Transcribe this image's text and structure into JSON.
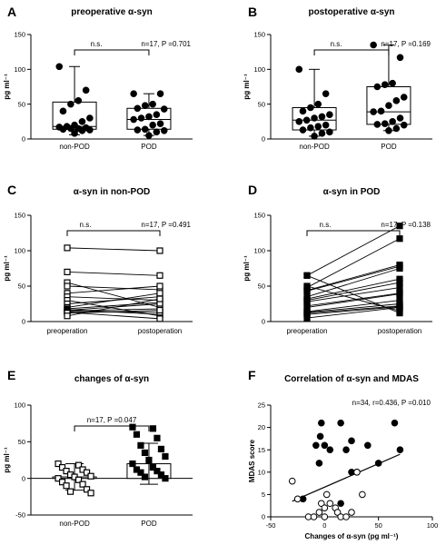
{
  "chart_data": [
    {
      "id": "A",
      "type": "box",
      "title": "preoperative α-syn",
      "ylabel": "pg ml⁻¹",
      "ylim": [
        0,
        150
      ],
      "yticks": [
        0,
        50,
        100,
        150
      ],
      "categories": [
        "non-POD",
        "POD"
      ],
      "annotation_ns": "n.s.",
      "annotation_stats": "n=17, P =0.701",
      "boxes": [
        {
          "name": "non-POD",
          "min": 6,
          "q1": 14,
          "median": 18,
          "q3": 53,
          "max": 104,
          "points": [
            104,
            70,
            55,
            50,
            40,
            30,
            25,
            20,
            18,
            17,
            16,
            15,
            15,
            14,
            13,
            12,
            8
          ]
        },
        {
          "name": "POD",
          "min": 5,
          "q1": 14,
          "median": 28,
          "q3": 44,
          "max": 65,
          "points": [
            65,
            65,
            50,
            48,
            44,
            43,
            35,
            32,
            30,
            28,
            22,
            20,
            14,
            13,
            12,
            10,
            5
          ]
        }
      ]
    },
    {
      "id": "B",
      "type": "box",
      "title": "postoperative α-syn",
      "ylabel": "pg ml⁻¹",
      "ylim": [
        0,
        150
      ],
      "yticks": [
        0,
        50,
        100,
        150
      ],
      "categories": [
        "non-POD",
        "POD"
      ],
      "annotation_ns": "n.s.",
      "annotation_stats": "n=17, P =0.169",
      "boxes": [
        {
          "name": "non-POD",
          "min": 4,
          "q1": 13,
          "median": 27,
          "q3": 45,
          "max": 100,
          "points": [
            100,
            65,
            50,
            45,
            40,
            35,
            32,
            30,
            27,
            25,
            20,
            18,
            16,
            13,
            10,
            8,
            4
          ]
        },
        {
          "name": "POD",
          "min": 12,
          "q1": 21,
          "median": 39,
          "q3": 75,
          "max": 135,
          "points": [
            135,
            117,
            80,
            78,
            75,
            60,
            55,
            48,
            40,
            39,
            30,
            25,
            22,
            21,
            20,
            15,
            12
          ]
        }
      ]
    },
    {
      "id": "C",
      "type": "paired-line",
      "title": "α-syn in non-POD",
      "ylabel": "pg ml⁻¹",
      "ylim": [
        0,
        150
      ],
      "yticks": [
        0,
        50,
        100,
        150
      ],
      "categories": [
        "preoperation",
        "postoperation"
      ],
      "marker": "square-open",
      "annotation_ns": "n.s.",
      "annotation_stats": "n=17, P =0.491",
      "pairs": [
        [
          104,
          100
        ],
        [
          70,
          65
        ],
        [
          55,
          20
        ],
        [
          50,
          45
        ],
        [
          40,
          50
        ],
        [
          35,
          30
        ],
        [
          30,
          8
        ],
        [
          25,
          35
        ],
        [
          20,
          40
        ],
        [
          18,
          27
        ],
        [
          17,
          10
        ],
        [
          16,
          25
        ],
        [
          15,
          18
        ],
        [
          14,
          13
        ],
        [
          13,
          4
        ],
        [
          12,
          16
        ],
        [
          8,
          32
        ]
      ]
    },
    {
      "id": "D",
      "type": "paired-line",
      "title": "α-syn in POD",
      "ylabel": "pg ml⁻¹",
      "ylim": [
        0,
        150
      ],
      "yticks": [
        0,
        50,
        100,
        150
      ],
      "categories": [
        "preoperation",
        "postoperation"
      ],
      "marker": "square-filled",
      "annotation_ns": "n.s.",
      "annotation_stats": "n=17, P =0.138",
      "pairs": [
        [
          65,
          135
        ],
        [
          48,
          117
        ],
        [
          44,
          80
        ],
        [
          43,
          78
        ],
        [
          35,
          75
        ],
        [
          32,
          60
        ],
        [
          30,
          55
        ],
        [
          28,
          48
        ],
        [
          22,
          40
        ],
        [
          20,
          39
        ],
        [
          14,
          30
        ],
        [
          13,
          25
        ],
        [
          12,
          22
        ],
        [
          10,
          21
        ],
        [
          5,
          20
        ],
        [
          50,
          15
        ],
        [
          65,
          12
        ]
      ]
    },
    {
      "id": "E",
      "type": "bar",
      "title": "changes of α-syn",
      "ylabel": "pg ml⁻¹",
      "ylim": [
        -50,
        100
      ],
      "yticks": [
        -50,
        0,
        50,
        100
      ],
      "categories": [
        "non-POD",
        "POD"
      ],
      "annotation_stats": "n=17, P =0.047",
      "bars": [
        {
          "name": "non-POD",
          "mean": 2,
          "sd": 18,
          "marker": "square-open",
          "points": [
            20,
            18,
            15,
            12,
            10,
            8,
            5,
            3,
            2,
            0,
            -2,
            -5,
            -8,
            -10,
            -15,
            -18,
            -20
          ]
        },
        {
          "name": "POD",
          "mean": 20,
          "sd": 28,
          "marker": "square-filled",
          "points": [
            70,
            68,
            60,
            55,
            45,
            40,
            35,
            30,
            25,
            20,
            15,
            12,
            10,
            8,
            5,
            2,
            0
          ]
        }
      ]
    },
    {
      "id": "F",
      "type": "scatter",
      "title": "Correlation of α-syn and MDAS",
      "xlabel": "Changes of α-syn (pg ml⁻¹)",
      "ylabel": "MDAS score",
      "xlim": [
        -50,
        100
      ],
      "xticks": [
        -50,
        0,
        50,
        100
      ],
      "ylim": [
        0,
        25
      ],
      "yticks": [
        0,
        5,
        10,
        15,
        20,
        25
      ],
      "annotation_stats": "n=34, r=0.436, P =0.010",
      "fit_line": {
        "x": [
          -30,
          70
        ],
        "y": [
          3.5,
          14
        ]
      },
      "series": [
        {
          "marker": "circle-filled",
          "points": [
            [
              -3,
              21
            ],
            [
              0,
              16
            ],
            [
              5,
              15
            ],
            [
              -4,
              18
            ],
            [
              -8,
              16
            ],
            [
              -5,
              12
            ],
            [
              15,
              21
            ],
            [
              20,
              15
            ],
            [
              25,
              17
            ],
            [
              25,
              10
            ],
            [
              30,
              10
            ],
            [
              40,
              16
            ],
            [
              50,
              12
            ],
            [
              65,
              21
            ],
            [
              70,
              15
            ],
            [
              -20,
              4
            ],
            [
              15,
              3
            ]
          ]
        },
        {
          "marker": "circle-open",
          "points": [
            [
              -30,
              8
            ],
            [
              -25,
              4
            ],
            [
              -15,
              0
            ],
            [
              -10,
              0
            ],
            [
              -5,
              1
            ],
            [
              -3,
              3
            ],
            [
              0,
              2
            ],
            [
              2,
              5
            ],
            [
              5,
              3
            ],
            [
              10,
              2
            ],
            [
              12,
              1
            ],
            [
              15,
              0
            ],
            [
              20,
              0
            ],
            [
              25,
              1
            ],
            [
              30,
              10
            ],
            [
              35,
              5
            ],
            [
              0,
              0
            ]
          ]
        }
      ]
    }
  ]
}
